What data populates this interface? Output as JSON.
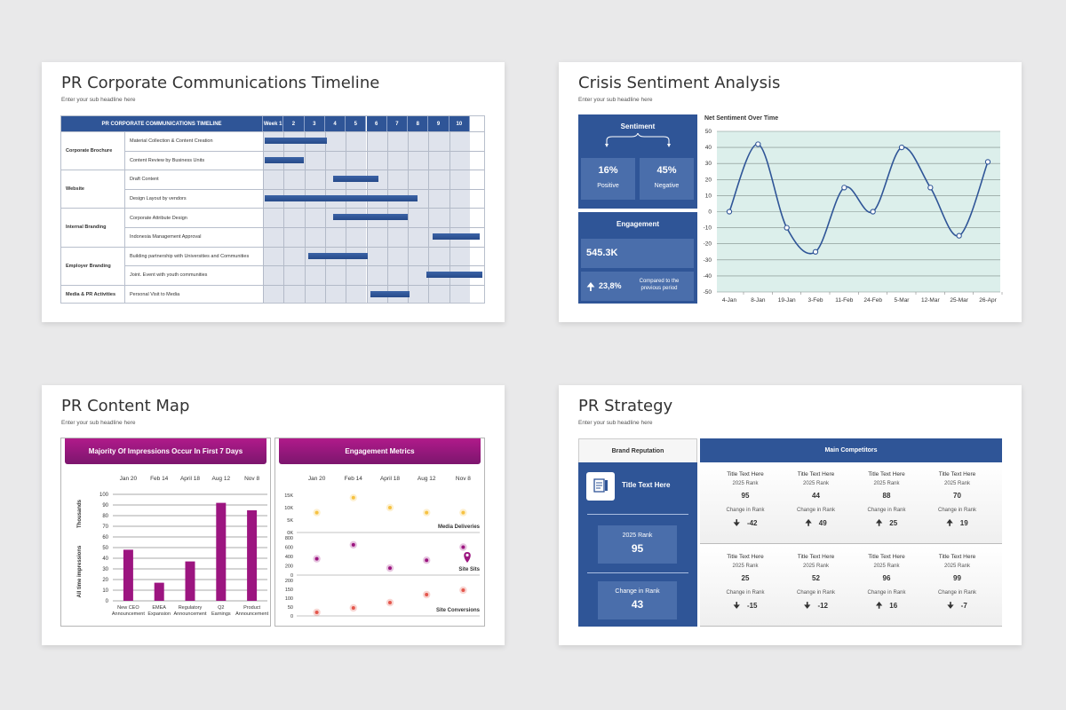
{
  "slides": {
    "timeline": {
      "title": "PR Corporate Communications Timeline",
      "subtitle": "Enter your sub headline here",
      "header": "PR CORPORATE COMMUNICATIONS TIMELINE",
      "weeks": [
        "Week 1",
        "2",
        "3",
        "4",
        "5",
        "6",
        "7",
        "8",
        "9",
        "10"
      ],
      "groups": [
        "Corporate Brochure",
        "Website",
        "Internal Branding",
        "Employer Branding",
        "Media & PR Activities"
      ],
      "tasks": [
        {
          "label": "Material Collection & Content Creation",
          "start": 1,
          "end": 4
        },
        {
          "label": "Content Review by Business Units",
          "start": 1,
          "end": 2.9
        },
        {
          "label": "Draft Content",
          "start": 4.3,
          "end": 6.5
        },
        {
          "label": "Design Layout by vendors",
          "start": 1,
          "end": 8.4
        },
        {
          "label": "Corporate Attribute Design",
          "start": 4.3,
          "end": 7.9
        },
        {
          "label": "Indonesia Management Approval",
          "start": 9.1,
          "end": 11.4
        },
        {
          "label": "Building partnership with Universities and Communities",
          "start": 3.1,
          "end": 6
        },
        {
          "label": "Joint. Event with youth communities",
          "start": 8.8,
          "end": 11.5
        },
        {
          "label": "Personal Visit to Media",
          "start": 6.1,
          "end": 8
        }
      ]
    },
    "sentiment": {
      "title": "Crisis Sentiment Analysis",
      "subtitle": "Enter your sub headline here",
      "sentiment_label": "Sentiment",
      "positive_value": "16%",
      "positive_label": "Positive",
      "negative_value": "45%",
      "negative_label": "Negative",
      "engagement_label": "Engagement",
      "engagement_value": "545.3K",
      "change_value": "23,8%",
      "change_text_1": "Compared to the",
      "change_text_2": "previous period",
      "chart_title": "Net Sentiment Over Time"
    },
    "content_map": {
      "title": "PR Content Map",
      "subtitle": "Enter your sub headline here",
      "left_header": "Majority Of Impressions Occur In First 7 Days",
      "right_header": "Engagement Metrics",
      "dates": [
        "Jan 20",
        "Feb 14",
        "April 18",
        "Aug 12",
        "Nov 8"
      ],
      "y_axis_top": "Thousands",
      "y_axis_bottom": "All time impressions",
      "right_axis_1": [
        "15K",
        "10K",
        "5K",
        "0K"
      ],
      "right_axis_2": [
        "800",
        "600",
        "400",
        "200",
        "0"
      ],
      "right_axis_3": [
        "200",
        "150",
        "100",
        "50",
        "0"
      ],
      "series_labels": [
        "Media Deliveries",
        "Site Sits",
        "Site Conversions"
      ]
    },
    "strategy": {
      "title": "PR Strategy",
      "subtitle": "Enter your sub headline here",
      "tab_brand": "Brand Reputation",
      "tab_competitors": "Main Competitors",
      "brand_title": "Title Text Here",
      "rank_label": "2025 Rank",
      "rank_value": "95",
      "change_label": "Change in Rank",
      "change_value": "43",
      "competitors": [
        {
          "title": "Title Text Here",
          "rank_label": "2025 Rank",
          "rank": "95",
          "change_label": "Change in Rank",
          "dir": "down",
          "change": "-42"
        },
        {
          "title": "Title Text Here",
          "rank_label": "2025 Rank",
          "rank": "44",
          "change_label": "Change in Rank",
          "dir": "up",
          "change": "49"
        },
        {
          "title": "Title Text Here",
          "rank_label": "2025 Rank",
          "rank": "88",
          "change_label": "Change in Rank",
          "dir": "up",
          "change": "25"
        },
        {
          "title": "Title Text Here",
          "rank_label": "2025 Rank",
          "rank": "70",
          "change_label": "Change in Rank",
          "dir": "up",
          "change": "19"
        },
        {
          "title": "Title Text Here",
          "rank_label": "2025 Rank",
          "rank": "25",
          "change_label": "Change in Rank",
          "dir": "down",
          "change": "-15"
        },
        {
          "title": "Title Text Here",
          "rank_label": "2025 Rank",
          "rank": "52",
          "change_label": "Change in Rank",
          "dir": "down",
          "change": "-12"
        },
        {
          "title": "Title Text Here",
          "rank_label": "2025 Rank",
          "rank": "96",
          "change_label": "Change in Rank",
          "dir": "up",
          "change": "16"
        },
        {
          "title": "Title Text Here",
          "rank_label": "2025 Rank",
          "rank": "99",
          "change_label": "Change in Rank",
          "dir": "down",
          "change": "-7"
        }
      ]
    }
  },
  "colors": {
    "navy": "#2f5597",
    "magenta": "#9c1580",
    "teal_bg": "#dcefeb"
  },
  "chart_data": [
    {
      "type": "line",
      "title": "Net Sentiment Over Time",
      "x": [
        "4-Jan",
        "8-Jan",
        "19-Jan",
        "3-Feb",
        "11-Feb",
        "24-Feb",
        "5-Mar",
        "12-Mar",
        "25-Mar",
        "26-Apr"
      ],
      "series": [
        {
          "values": [
            0,
            42,
            -10,
            -25,
            15,
            0,
            40,
            15,
            -15,
            31
          ]
        }
      ],
      "ylim": [
        -50,
        50
      ],
      "yticks": [
        50,
        40,
        30,
        20,
        10,
        0,
        -10,
        -20,
        -30,
        -40,
        -50
      ],
      "grid": true
    },
    {
      "type": "bar",
      "title": "Majority Of Impressions Occur In First 7 Days",
      "categories": [
        "New CEO Announcement",
        "EMEA Expansion",
        "Regulatory Announcement",
        "Q2 Earnings",
        "Product Announcement"
      ],
      "values": [
        48,
        17,
        37,
        92,
        85
      ],
      "ylim": [
        0,
        100
      ],
      "yticks": [
        0,
        10,
        20,
        30,
        40,
        50,
        60,
        70,
        80,
        90,
        100
      ],
      "ylabel": "All time impressions"
    },
    {
      "type": "scatter",
      "title": "Engagement Metrics",
      "categories": [
        "Jan 20",
        "Feb 14",
        "April 18",
        "Aug 12",
        "Nov 8"
      ],
      "series": [
        {
          "name": "Media Deliveries",
          "values": [
            8,
            14,
            10,
            8,
            8
          ],
          "ylim": [
            0,
            15
          ],
          "unit": "K"
        },
        {
          "name": "Site Sits",
          "values": [
            350,
            650,
            150,
            320,
            600
          ],
          "ylim": [
            0,
            800
          ]
        },
        {
          "name": "Site Conversions",
          "values": [
            20,
            45,
            75,
            120,
            145
          ],
          "ylim": [
            0,
            200
          ]
        }
      ]
    }
  ]
}
